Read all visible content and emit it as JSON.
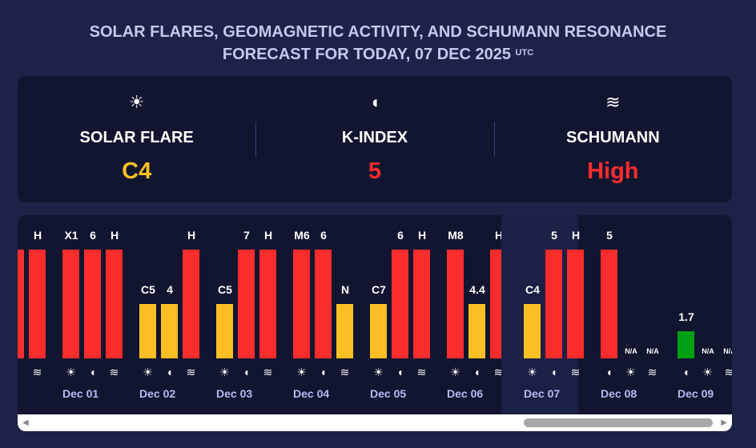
{
  "title": {
    "line1": "SOLAR FLARES, GEOMAGNETIC ACTIVITY, AND SCHUMANN RESONANCE",
    "line2": "FORECAST FOR TODAY, 07 DEC 2025",
    "utc": "UTC"
  },
  "summary": [
    {
      "icon": "sun-icon",
      "glyph": "☀",
      "label": "SOLAR FLARE",
      "value": "C4",
      "color": "#fbbf24"
    },
    {
      "icon": "magnet-icon",
      "glyph": "◖",
      "label": "K-INDEX",
      "value": "5",
      "color": "#fb2c2c"
    },
    {
      "icon": "waves-icon",
      "glyph": "≋",
      "label": "SCHUMANN",
      "value": "High",
      "color": "#fb2c2c"
    }
  ],
  "colors": {
    "red": "#fb2c2c",
    "yellow": "#fbbf24",
    "green": "#00a014"
  },
  "days": [
    {
      "label": "",
      "bars": [
        {
          "t": "sun",
          "v": "",
          "lvl": 1,
          "c": "red"
        },
        {
          "t": "mag",
          "v": "",
          "lvl": 1,
          "c": "red"
        },
        {
          "t": "wave",
          "v": "H",
          "lvl": 1,
          "c": "red"
        }
      ]
    },
    {
      "label": "Dec 01",
      "bars": [
        {
          "t": "sun",
          "v": "X1",
          "lvl": 1,
          "c": "red"
        },
        {
          "t": "mag",
          "v": "6",
          "lvl": 1,
          "c": "red"
        },
        {
          "t": "wave",
          "v": "H",
          "lvl": 1,
          "c": "red"
        }
      ]
    },
    {
      "label": "Dec 02",
      "bars": [
        {
          "t": "sun",
          "v": "C5",
          "lvl": 0.5,
          "c": "yellow"
        },
        {
          "t": "mag",
          "v": "4",
          "lvl": 0.5,
          "c": "yellow"
        },
        {
          "t": "wave",
          "v": "H",
          "lvl": 1,
          "c": "red"
        }
      ]
    },
    {
      "label": "Dec 03",
      "bars": [
        {
          "t": "sun",
          "v": "C5",
          "lvl": 0.5,
          "c": "yellow"
        },
        {
          "t": "mag",
          "v": "7",
          "lvl": 1,
          "c": "red"
        },
        {
          "t": "wave",
          "v": "H",
          "lvl": 1,
          "c": "red"
        }
      ]
    },
    {
      "label": "Dec 04",
      "bars": [
        {
          "t": "sun",
          "v": "M6",
          "lvl": 1,
          "c": "red"
        },
        {
          "t": "mag",
          "v": "6",
          "lvl": 1,
          "c": "red"
        },
        {
          "t": "wave",
          "v": "N",
          "lvl": 0.5,
          "c": "yellow"
        }
      ]
    },
    {
      "label": "Dec 05",
      "bars": [
        {
          "t": "sun",
          "v": "C7",
          "lvl": 0.5,
          "c": "yellow"
        },
        {
          "t": "mag",
          "v": "6",
          "lvl": 1,
          "c": "red"
        },
        {
          "t": "wave",
          "v": "H",
          "lvl": 1,
          "c": "red"
        }
      ]
    },
    {
      "label": "Dec 06",
      "bars": [
        {
          "t": "sun",
          "v": "M8",
          "lvl": 1,
          "c": "red"
        },
        {
          "t": "mag",
          "v": "4.4",
          "lvl": 0.5,
          "c": "yellow"
        },
        {
          "t": "wave",
          "v": "H",
          "lvl": 1,
          "c": "red"
        }
      ]
    },
    {
      "label": "Dec 07",
      "today": true,
      "bars": [
        {
          "t": "sun",
          "v": "C4",
          "lvl": 0.5,
          "c": "yellow"
        },
        {
          "t": "mag",
          "v": "5",
          "lvl": 1,
          "c": "red"
        },
        {
          "t": "wave",
          "v": "H",
          "lvl": 1,
          "c": "red"
        }
      ]
    },
    {
      "label": "Dec 08",
      "bars": [
        {
          "t": "mag",
          "v": "5",
          "lvl": 1,
          "c": "red"
        },
        {
          "t": "sun",
          "v": "N/A",
          "lvl": 0
        },
        {
          "t": "wave",
          "v": "N/A",
          "lvl": 0
        }
      ]
    },
    {
      "label": "Dec 09",
      "bars": [
        {
          "t": "mag",
          "v": "1.7",
          "lvl": 0.25,
          "c": "green"
        },
        {
          "t": "sun",
          "v": "N/A",
          "lvl": 0
        },
        {
          "t": "wave",
          "v": "N/A",
          "lvl": 0
        }
      ]
    }
  ]
}
